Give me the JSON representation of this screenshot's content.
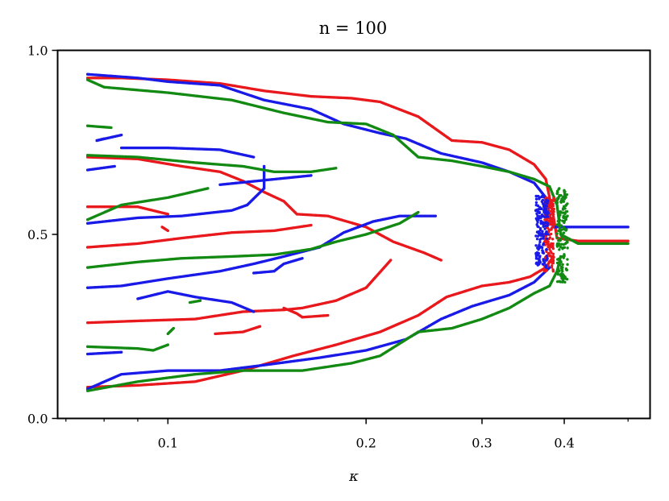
{
  "chart_data": {
    "type": "scatter",
    "title": "n = 100",
    "xlabel": "κ",
    "ylabel": "",
    "xscale": "log",
    "xlim": [
      0.068,
      0.54
    ],
    "ylim": [
      0.0,
      1.0
    ],
    "grid": false,
    "xticks": [
      {
        "value": 0.1,
        "label": "0.1"
      },
      {
        "value": 0.2,
        "label": "0.2"
      },
      {
        "value": 0.3,
        "label": "0.3"
      },
      {
        "value": 0.4,
        "label": "0.4"
      }
    ],
    "xminor_ticks": [
      0.07,
      0.08,
      0.09,
      0.5
    ],
    "yticks": [
      {
        "value": 0.0,
        "label": "0.0"
      },
      {
        "value": 0.5,
        "label": "0.5"
      },
      {
        "value": 1.0,
        "label": "1.0"
      }
    ],
    "series": [
      {
        "color": "#e8181c",
        "curves": [
          [
            [
              0.0755,
              0.925
            ],
            [
              0.085,
              0.925
            ],
            [
              0.1,
              0.92
            ],
            [
              0.12,
              0.91
            ],
            [
              0.14,
              0.89
            ],
            [
              0.165,
              0.875
            ],
            [
              0.19,
              0.87
            ],
            [
              0.21,
              0.86
            ],
            [
              0.24,
              0.82
            ],
            [
              0.27,
              0.755
            ],
            [
              0.3,
              0.75
            ],
            [
              0.33,
              0.73
            ],
            [
              0.36,
              0.69
            ],
            [
              0.375,
              0.65
            ],
            [
              0.38,
              0.6
            ],
            [
              0.385,
              0.55
            ],
            [
              0.39,
              0.49
            ],
            [
              0.42,
              0.482
            ],
            [
              0.5,
              0.482
            ]
          ],
          [
            [
              0.0755,
              0.085
            ],
            [
              0.09,
              0.09
            ],
            [
              0.11,
              0.1
            ],
            [
              0.13,
              0.13
            ],
            [
              0.155,
              0.17
            ],
            [
              0.18,
              0.2
            ],
            [
              0.21,
              0.235
            ],
            [
              0.24,
              0.28
            ],
            [
              0.265,
              0.33
            ],
            [
              0.3,
              0.36
            ],
            [
              0.33,
              0.37
            ],
            [
              0.355,
              0.385
            ],
            [
              0.375,
              0.41
            ],
            [
              0.385,
              0.44
            ]
          ],
          [
            [
              0.0755,
              0.71
            ],
            [
              0.09,
              0.705
            ],
            [
              0.105,
              0.685
            ],
            [
              0.12,
              0.67
            ],
            [
              0.13,
              0.645
            ],
            [
              0.14,
              0.615
            ],
            [
              0.15,
              0.59
            ],
            [
              0.157,
              0.555
            ],
            [
              0.175,
              0.55
            ],
            [
              0.2,
              0.52
            ],
            [
              0.22,
              0.48
            ],
            [
              0.245,
              0.45
            ],
            [
              0.26,
              0.43
            ]
          ],
          [
            [
              0.0755,
              0.575
            ],
            [
              0.09,
              0.575
            ],
            [
              0.1,
              0.555
            ]
          ],
          [
            [
              0.0755,
              0.465
            ],
            [
              0.09,
              0.475
            ],
            [
              0.105,
              0.49
            ],
            [
              0.125,
              0.505
            ],
            [
              0.145,
              0.51
            ],
            [
              0.165,
              0.525
            ]
          ],
          [
            [
              0.0755,
              0.26
            ],
            [
              0.09,
              0.265
            ],
            [
              0.11,
              0.27
            ],
            [
              0.13,
              0.29
            ],
            [
              0.15,
              0.295
            ],
            [
              0.16,
              0.3
            ],
            [
              0.18,
              0.32
            ],
            [
              0.2,
              0.355
            ],
            [
              0.218,
              0.43
            ]
          ],
          [
            [
              0.15,
              0.3
            ],
            [
              0.157,
              0.285
            ],
            [
              0.16,
              0.275
            ],
            [
              0.175,
              0.28
            ]
          ],
          [
            [
              0.118,
              0.23
            ],
            [
              0.13,
              0.235
            ],
            [
              0.138,
              0.25
            ]
          ],
          [
            [
              0.1,
              0.51
            ],
            [
              0.098,
              0.52
            ]
          ]
        ]
      },
      {
        "color": "#1a1ae8",
        "curves": [
          [
            [
              0.0755,
              0.935
            ],
            [
              0.09,
              0.925
            ],
            [
              0.1,
              0.915
            ],
            [
              0.12,
              0.905
            ],
            [
              0.14,
              0.865
            ],
            [
              0.165,
              0.84
            ],
            [
              0.185,
              0.8
            ],
            [
              0.21,
              0.775
            ],
            [
              0.23,
              0.76
            ],
            [
              0.26,
              0.72
            ],
            [
              0.3,
              0.695
            ],
            [
              0.33,
              0.67
            ],
            [
              0.36,
              0.64
            ],
            [
              0.375,
              0.6
            ],
            [
              0.38,
              0.55
            ],
            [
              0.385,
              0.52
            ],
            [
              0.42,
              0.52
            ],
            [
              0.5,
              0.52
            ]
          ],
          [
            [
              0.0755,
              0.08
            ],
            [
              0.085,
              0.12
            ],
            [
              0.1,
              0.13
            ],
            [
              0.12,
              0.13
            ],
            [
              0.14,
              0.145
            ],
            [
              0.17,
              0.165
            ],
            [
              0.2,
              0.185
            ],
            [
              0.23,
              0.215
            ],
            [
              0.26,
              0.27
            ],
            [
              0.29,
              0.305
            ],
            [
              0.33,
              0.335
            ],
            [
              0.36,
              0.37
            ],
            [
              0.38,
              0.41
            ]
          ],
          [
            [
              0.085,
              0.735
            ],
            [
              0.1,
              0.735
            ],
            [
              0.12,
              0.73
            ],
            [
              0.135,
              0.71
            ]
          ],
          [
            [
              0.078,
              0.755
            ],
            [
              0.085,
              0.77
            ]
          ],
          [
            [
              0.0755,
              0.675
            ],
            [
              0.083,
              0.685
            ]
          ],
          [
            [
              0.0755,
              0.53
            ],
            [
              0.09,
              0.545
            ],
            [
              0.105,
              0.55
            ],
            [
              0.125,
              0.565
            ],
            [
              0.132,
              0.58
            ],
            [
              0.14,
              0.625
            ],
            [
              0.14,
              0.685
            ]
          ],
          [
            [
              0.0755,
              0.355
            ],
            [
              0.085,
              0.36
            ],
            [
              0.1,
              0.38
            ],
            [
              0.12,
              0.4
            ],
            [
              0.135,
              0.42
            ],
            [
              0.15,
              0.44
            ],
            [
              0.17,
              0.465
            ],
            [
              0.185,
              0.505
            ],
            [
              0.205,
              0.535
            ],
            [
              0.225,
              0.55
            ],
            [
              0.255,
              0.55
            ]
          ],
          [
            [
              0.08,
              0.76
            ],
            [
              0.078,
              0.755
            ]
          ],
          [
            [
              0.12,
              0.635
            ],
            [
              0.165,
              0.66
            ]
          ],
          [
            [
              0.09,
              0.325
            ],
            [
              0.1,
              0.345
            ],
            [
              0.11,
              0.33
            ],
            [
              0.125,
              0.315
            ],
            [
              0.135,
              0.29
            ]
          ],
          [
            [
              0.135,
              0.395
            ],
            [
              0.145,
              0.4
            ],
            [
              0.15,
              0.42
            ],
            [
              0.16,
              0.435
            ]
          ],
          [
            [
              0.0755,
              0.175
            ],
            [
              0.085,
              0.18
            ]
          ]
        ]
      },
      {
        "color": "#138a13",
        "curves": [
          [
            [
              0.0755,
              0.92
            ],
            [
              0.08,
              0.9
            ],
            [
              0.1,
              0.885
            ],
            [
              0.125,
              0.865
            ],
            [
              0.15,
              0.83
            ],
            [
              0.175,
              0.805
            ],
            [
              0.2,
              0.8
            ],
            [
              0.22,
              0.77
            ],
            [
              0.24,
              0.71
            ],
            [
              0.27,
              0.7
            ],
            [
              0.3,
              0.685
            ],
            [
              0.33,
              0.67
            ],
            [
              0.36,
              0.65
            ],
            [
              0.38,
              0.63
            ],
            [
              0.39,
              0.58
            ],
            [
              0.395,
              0.5
            ],
            [
              0.42,
              0.475
            ],
            [
              0.5,
              0.475
            ]
          ],
          [
            [
              0.0755,
              0.075
            ],
            [
              0.09,
              0.1
            ],
            [
              0.11,
              0.12
            ],
            [
              0.13,
              0.13
            ],
            [
              0.16,
              0.13
            ],
            [
              0.19,
              0.15
            ],
            [
              0.21,
              0.17
            ],
            [
              0.24,
              0.235
            ],
            [
              0.27,
              0.245
            ],
            [
              0.3,
              0.27
            ],
            [
              0.33,
              0.3
            ],
            [
              0.36,
              0.34
            ],
            [
              0.38,
              0.36
            ],
            [
              0.39,
              0.4
            ],
            [
              0.395,
              0.44
            ]
          ],
          [
            [
              0.0755,
              0.795
            ],
            [
              0.082,
              0.79
            ]
          ],
          [
            [
              0.0755,
              0.715
            ],
            [
              0.09,
              0.71
            ],
            [
              0.11,
              0.695
            ],
            [
              0.13,
              0.685
            ],
            [
              0.145,
              0.67
            ],
            [
              0.165,
              0.67
            ],
            [
              0.18,
              0.68
            ]
          ],
          [
            [
              0.0755,
              0.54
            ],
            [
              0.085,
              0.58
            ],
            [
              0.1,
              0.6
            ],
            [
              0.115,
              0.625
            ]
          ],
          [
            [
              0.0755,
              0.41
            ],
            [
              0.09,
              0.425
            ],
            [
              0.105,
              0.435
            ],
            [
              0.125,
              0.44
            ],
            [
              0.145,
              0.445
            ],
            [
              0.165,
              0.46
            ],
            [
              0.18,
              0.48
            ],
            [
              0.2,
              0.5
            ],
            [
              0.225,
              0.53
            ],
            [
              0.24,
              0.56
            ]
          ],
          [
            [
              0.0755,
              0.195
            ],
            [
              0.09,
              0.19
            ],
            [
              0.095,
              0.185
            ],
            [
              0.1,
              0.2
            ]
          ],
          [
            [
              0.1,
              0.23
            ],
            [
              0.102,
              0.245
            ]
          ],
          [
            [
              0.108,
              0.315
            ],
            [
              0.112,
              0.32
            ]
          ]
        ]
      }
    ],
    "bifurcation_jitter": [
      {
        "color": "#e8181c",
        "x_from": 0.373,
        "x_to": 0.386,
        "y_from": 0.4,
        "y_to": 0.6
      },
      {
        "color": "#1a1ae8",
        "x_from": 0.362,
        "x_to": 0.378,
        "y_from": 0.41,
        "y_to": 0.605
      },
      {
        "color": "#138a13",
        "x_from": 0.39,
        "x_to": 0.405,
        "y_from": 0.37,
        "y_to": 0.63
      }
    ]
  }
}
